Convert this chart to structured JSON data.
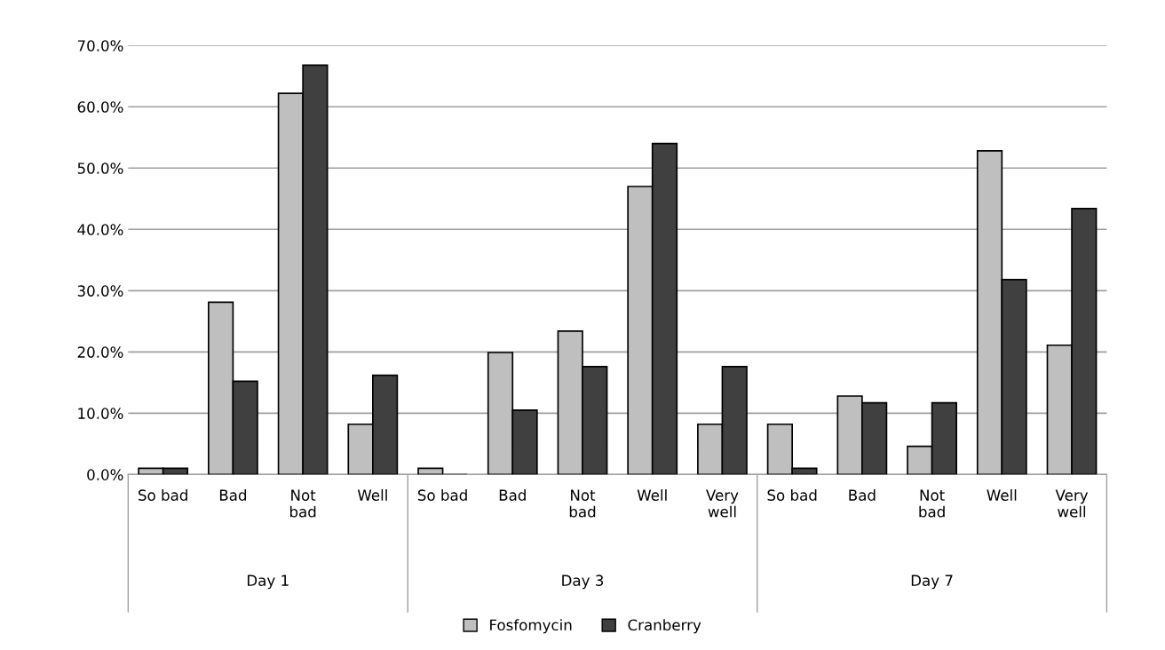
{
  "chart_data": {
    "type": "bar",
    "categories": [
      "So bad",
      "Bad",
      "Not\nbad",
      "Well",
      "So bad",
      "Bad",
      "Not\nbad",
      "Well",
      "Very\nwell",
      "So bad",
      "Bad",
      "Not\nbad",
      "Well",
      "Very\nwell"
    ],
    "annotations": [
      "Day 1",
      "Day 3",
      "Day 7"
    ],
    "series": [
      {
        "name": "Fosfomycin",
        "color": "#bfbfbf",
        "values": [
          1.0,
          28.1,
          62.2,
          8.2,
          1.0,
          19.9,
          23.4,
          47.0,
          8.2,
          8.2,
          12.8,
          4.6,
          52.8,
          21.1
        ]
      },
      {
        "name": "Cranberry",
        "color": "#404040",
        "values": [
          1.0,
          15.2,
          66.8,
          16.2,
          0,
          10.5,
          17.6,
          54.0,
          17.6,
          1.0,
          11.7,
          11.7,
          31.8,
          43.4
        ]
      }
    ],
    "ylim": [
      0,
      70
    ],
    "yticks": [
      {
        "value": 0,
        "label": "0.0%"
      },
      {
        "value": 10,
        "label": "10.0%"
      },
      {
        "value": 20,
        "label": "20.0%"
      },
      {
        "value": 30,
        "label": "30.0%"
      },
      {
        "value": 40,
        "label": "40.0%"
      },
      {
        "value": 50,
        "label": "50.0%"
      },
      {
        "value": 60,
        "label": "60.0%"
      },
      {
        "value": 70,
        "label": "70.0%"
      }
    ],
    "grid": "y",
    "legend": "bottom"
  }
}
